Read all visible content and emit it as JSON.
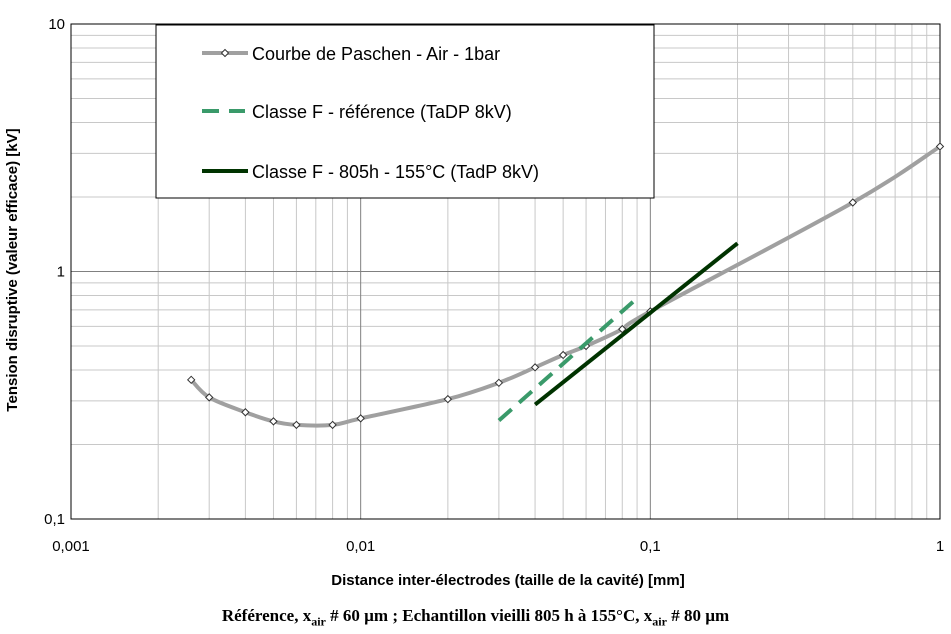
{
  "chart_data": {
    "type": "line",
    "x_scale": "log",
    "y_scale": "log",
    "xlim": [
      0.001,
      1
    ],
    "ylim": [
      0.1,
      10
    ],
    "x_ticks": [
      "0,001",
      "0,01",
      "0,1",
      "1"
    ],
    "y_ticks": [
      "0,1",
      "1",
      "10"
    ],
    "xlabel": "Distance inter-électrodes (taille de la cavité) [mm]",
    "ylabel": "Tension disruptive (valeur efficace) [kV]",
    "grid": true,
    "legend_position": "top-left",
    "series": [
      {
        "name": "Courbe de Paschen - Air - 1bar",
        "style": "solid-markers",
        "color": "#a0a0a0",
        "x": [
          0.0026,
          0.003,
          0.004,
          0.005,
          0.006,
          0.008,
          0.01,
          0.02,
          0.03,
          0.04,
          0.05,
          0.06,
          0.08,
          0.1,
          0.5,
          1
        ],
        "y": [
          0.365,
          0.31,
          0.27,
          0.248,
          0.24,
          0.24,
          0.255,
          0.305,
          0.355,
          0.41,
          0.46,
          0.5,
          0.585,
          0.69,
          1.9,
          3.2
        ]
      },
      {
        "name": "Classe F - référence (TaDP 8kV)",
        "style": "dashed",
        "color": "#3a9a6a",
        "x": [
          0.03,
          0.09
        ],
        "y": [
          0.25,
          0.78
        ]
      },
      {
        "name": "Classe F - 805h - 155°C  (TadP 8kV)",
        "style": "solid",
        "color": "#003300",
        "x": [
          0.04,
          0.2
        ],
        "y": [
          0.29,
          1.3
        ]
      }
    ]
  },
  "caption": {
    "part1": "Référence, x",
    "sub1": "air",
    "part2": " # 60 µm ; Echantillon vieilli 805 h à 155°C, x",
    "sub2": "air",
    "part3": " # 80 µm"
  }
}
